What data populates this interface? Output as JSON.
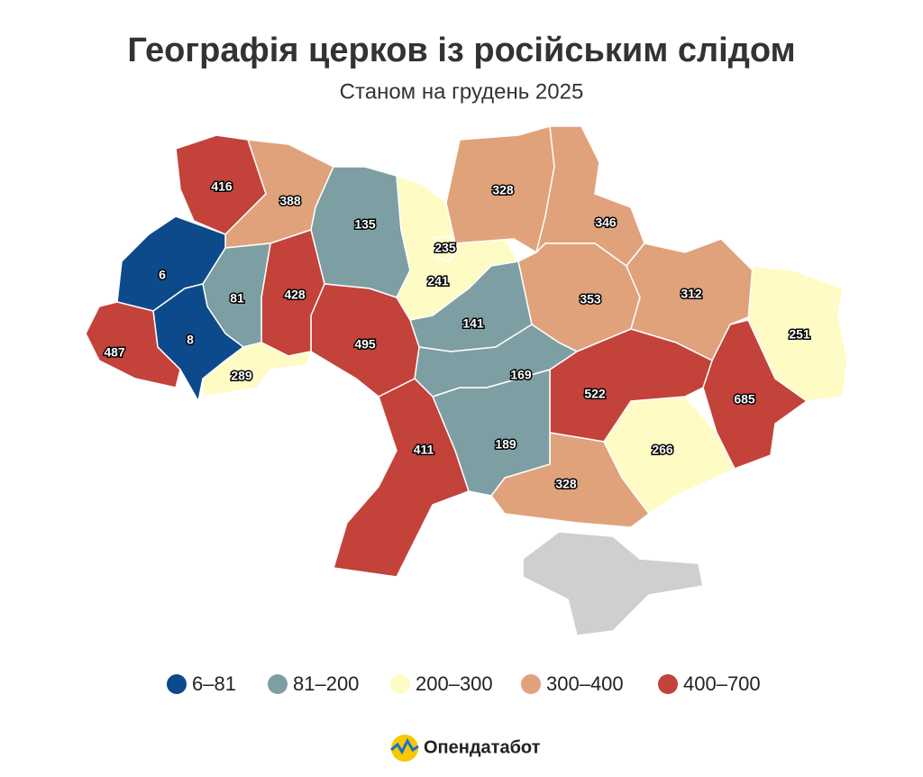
{
  "chart_data": {
    "type": "choropleth",
    "title": "Географія церков із російським слідом",
    "subtitle": "Станом на грудень 2025",
    "values": [
      416,
      388,
      135,
      241,
      328,
      346,
      353,
      312,
      251,
      685,
      266,
      522,
      328,
      189,
      141,
      169,
      411,
      495,
      428,
      81,
      289,
      6,
      8,
      487,
      235
    ],
    "colors": [
      "#c3423a",
      "#e0a27b",
      "#7d9fa3",
      "#fefbc5",
      "#e0a27b",
      "#e0a27b",
      "#e0a27b",
      "#e0a27b",
      "#fefbc5",
      "#c3423a",
      "#fefbc5",
      "#c3423a",
      "#e0a27b",
      "#7d9fa3",
      "#7d9fa3",
      "#7d9fa3",
      "#c3423a",
      "#c3423a",
      "#c3423a",
      "#7d9fa3",
      "#fefbc5",
      "#0d4a8b",
      "#0d4a8b",
      "#c3423a",
      "#fefbc5"
    ],
    "no_data_color": "#cfcfd1",
    "legend": [
      {
        "label": "6–81",
        "color": "#0d4a8b"
      },
      {
        "label": "81–200",
        "color": "#7d9fa3"
      },
      {
        "label": "200–300",
        "color": "#fefbc5"
      },
      {
        "label": "300–400",
        "color": "#e0a27b"
      },
      {
        "label": "400–700",
        "color": "#c3423a"
      }
    ]
  },
  "footer": {
    "brand": "Опендатабот"
  }
}
